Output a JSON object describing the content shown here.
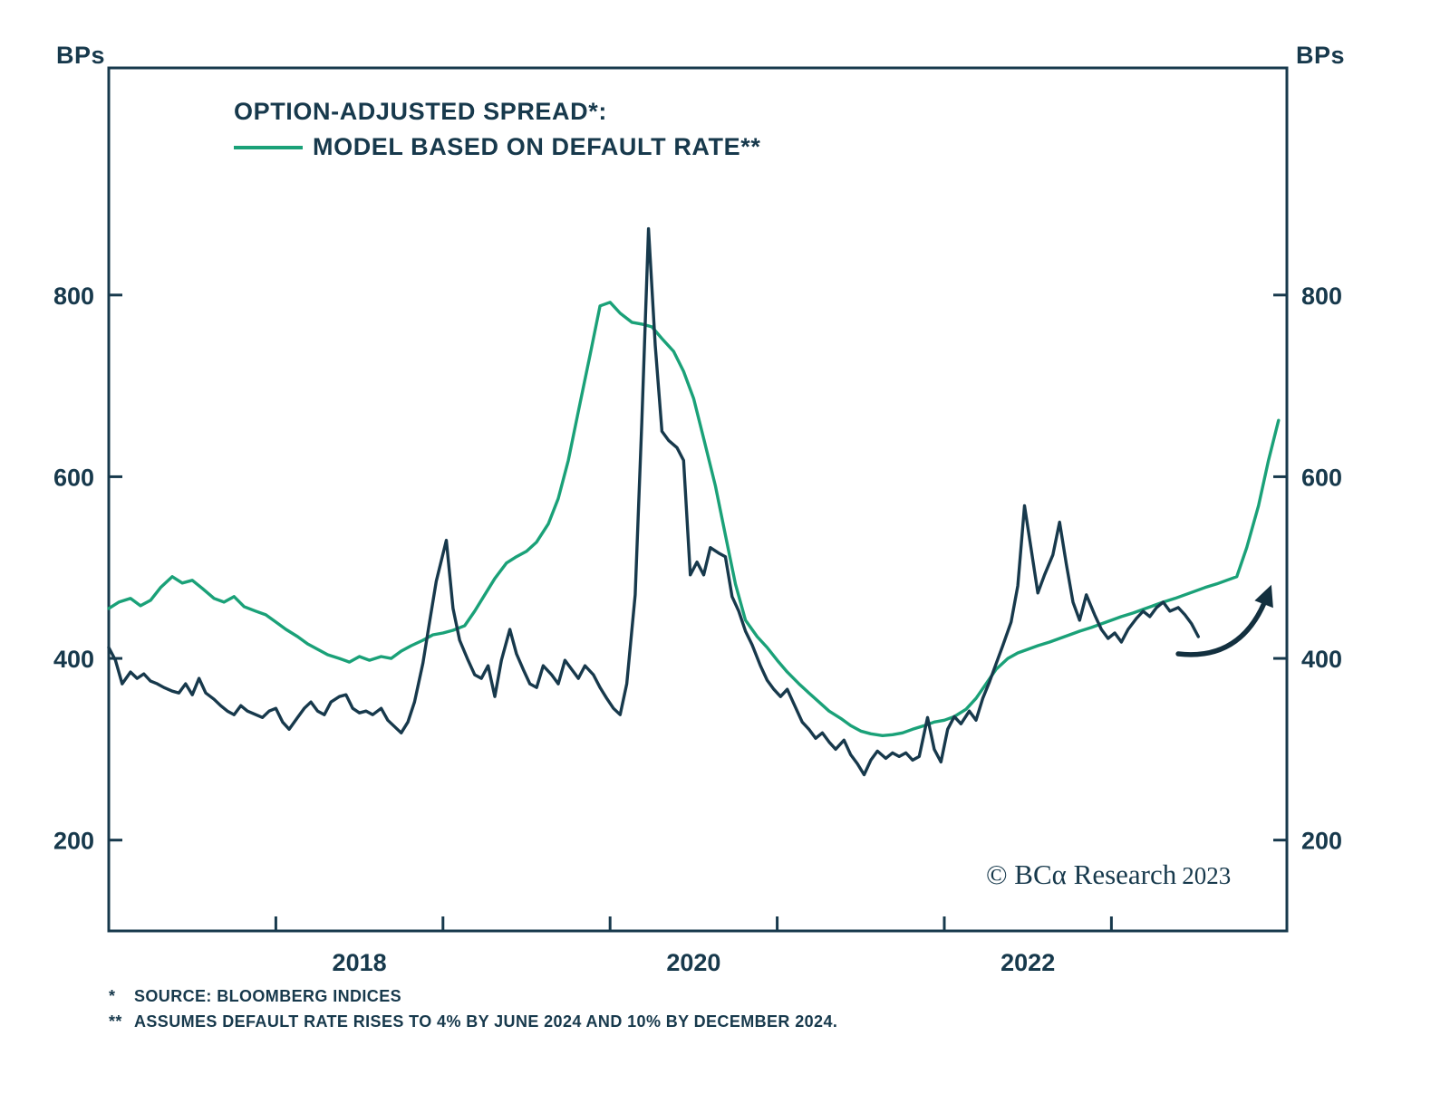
{
  "page": {
    "background": "#ffffff"
  },
  "colors": {
    "navy": "#17394c",
    "green": "#1aa178",
    "arrow": "#13303f",
    "background": "#ffffff"
  },
  "axis_units": {
    "left": "BPs",
    "right": "BPs"
  },
  "legend": {
    "line1": "OPTION-ADJUSTED SPREAD*:",
    "line2": "MODEL BASED ON DEFAULT RATE**"
  },
  "copyright": {
    "text": "© BCα Research",
    "year": "2023"
  },
  "footnotes": [
    {
      "marker": "*",
      "text": "SOURCE: BLOOMBERG INDICES"
    },
    {
      "marker": "**",
      "text": "ASSUMES DEFAULT RATE RISES TO 4% BY JUNE 2024 AND 10% BY DECEMBER 2024."
    }
  ],
  "chart_data": {
    "type": "line",
    "title": "OPTION-ADJUSTED SPREAD: ACTUAL VS MODEL BASED ON DEFAULT RATE",
    "xlabel": "",
    "ylabel": "BPs",
    "xlim": [
      2017.0,
      2024.05
    ],
    "ylim": [
      100,
      1050
    ],
    "yticks": [
      200,
      400,
      600,
      800
    ],
    "xticks": [
      2018,
      2019,
      2020,
      2021,
      2022,
      2023
    ],
    "xtick_labels": [
      {
        "x": 2018.5,
        "label": "2018"
      },
      {
        "x": 2020.5,
        "label": "2020"
      },
      {
        "x": 2022.5,
        "label": "2022"
      }
    ],
    "grid": false,
    "legend_position": "top-left",
    "series": [
      {
        "name": "OPTION-ADJUSTED SPREAD*",
        "color": "#17394c",
        "points": [
          [
            2017.0,
            412
          ],
          [
            2017.04,
            398
          ],
          [
            2017.08,
            372
          ],
          [
            2017.13,
            385
          ],
          [
            2017.17,
            378
          ],
          [
            2017.21,
            383
          ],
          [
            2017.25,
            375
          ],
          [
            2017.29,
            372
          ],
          [
            2017.33,
            368
          ],
          [
            2017.38,
            364
          ],
          [
            2017.42,
            362
          ],
          [
            2017.46,
            372
          ],
          [
            2017.5,
            360
          ],
          [
            2017.54,
            378
          ],
          [
            2017.58,
            362
          ],
          [
            2017.63,
            355
          ],
          [
            2017.67,
            348
          ],
          [
            2017.71,
            342
          ],
          [
            2017.75,
            338
          ],
          [
            2017.79,
            348
          ],
          [
            2017.83,
            342
          ],
          [
            2017.88,
            338
          ],
          [
            2017.92,
            335
          ],
          [
            2017.96,
            342
          ],
          [
            2018.0,
            345
          ],
          [
            2018.04,
            330
          ],
          [
            2018.08,
            322
          ],
          [
            2018.13,
            335
          ],
          [
            2018.17,
            345
          ],
          [
            2018.21,
            352
          ],
          [
            2018.25,
            342
          ],
          [
            2018.29,
            338
          ],
          [
            2018.33,
            352
          ],
          [
            2018.38,
            358
          ],
          [
            2018.42,
            360
          ],
          [
            2018.46,
            345
          ],
          [
            2018.5,
            340
          ],
          [
            2018.54,
            342
          ],
          [
            2018.58,
            338
          ],
          [
            2018.63,
            345
          ],
          [
            2018.67,
            332
          ],
          [
            2018.71,
            325
          ],
          [
            2018.75,
            318
          ],
          [
            2018.79,
            330
          ],
          [
            2018.83,
            352
          ],
          [
            2018.88,
            395
          ],
          [
            2018.92,
            440
          ],
          [
            2018.96,
            485
          ],
          [
            2019.02,
            530
          ],
          [
            2019.06,
            455
          ],
          [
            2019.1,
            420
          ],
          [
            2019.15,
            398
          ],
          [
            2019.19,
            382
          ],
          [
            2019.23,
            378
          ],
          [
            2019.27,
            392
          ],
          [
            2019.31,
            358
          ],
          [
            2019.35,
            398
          ],
          [
            2019.4,
            432
          ],
          [
            2019.44,
            405
          ],
          [
            2019.48,
            388
          ],
          [
            2019.52,
            372
          ],
          [
            2019.56,
            368
          ],
          [
            2019.6,
            392
          ],
          [
            2019.65,
            382
          ],
          [
            2019.69,
            372
          ],
          [
            2019.73,
            398
          ],
          [
            2019.77,
            388
          ],
          [
            2019.81,
            378
          ],
          [
            2019.85,
            392
          ],
          [
            2019.9,
            382
          ],
          [
            2019.94,
            368
          ],
          [
            2019.98,
            356
          ],
          [
            2020.02,
            345
          ],
          [
            2020.06,
            338
          ],
          [
            2020.1,
            372
          ],
          [
            2020.15,
            470
          ],
          [
            2020.19,
            660
          ],
          [
            2020.23,
            873
          ],
          [
            2020.27,
            745
          ],
          [
            2020.31,
            650
          ],
          [
            2020.35,
            640
          ],
          [
            2020.4,
            632
          ],
          [
            2020.44,
            618
          ],
          [
            2020.48,
            492
          ],
          [
            2020.52,
            506
          ],
          [
            2020.56,
            492
          ],
          [
            2020.6,
            522
          ],
          [
            2020.65,
            516
          ],
          [
            2020.69,
            512
          ],
          [
            2020.73,
            468
          ],
          [
            2020.77,
            452
          ],
          [
            2020.81,
            430
          ],
          [
            2020.85,
            415
          ],
          [
            2020.9,
            392
          ],
          [
            2020.94,
            376
          ],
          [
            2020.98,
            366
          ],
          [
            2021.02,
            358
          ],
          [
            2021.06,
            366
          ],
          [
            2021.1,
            350
          ],
          [
            2021.15,
            330
          ],
          [
            2021.19,
            322
          ],
          [
            2021.23,
            312
          ],
          [
            2021.27,
            318
          ],
          [
            2021.31,
            308
          ],
          [
            2021.35,
            300
          ],
          [
            2021.4,
            310
          ],
          [
            2021.44,
            294
          ],
          [
            2021.48,
            284
          ],
          [
            2021.52,
            272
          ],
          [
            2021.56,
            288
          ],
          [
            2021.6,
            298
          ],
          [
            2021.65,
            290
          ],
          [
            2021.69,
            296
          ],
          [
            2021.73,
            292
          ],
          [
            2021.77,
            296
          ],
          [
            2021.81,
            288
          ],
          [
            2021.85,
            292
          ],
          [
            2021.9,
            335
          ],
          [
            2021.94,
            300
          ],
          [
            2021.98,
            286
          ],
          [
            2022.02,
            322
          ],
          [
            2022.06,
            336
          ],
          [
            2022.1,
            328
          ],
          [
            2022.15,
            342
          ],
          [
            2022.19,
            332
          ],
          [
            2022.23,
            356
          ],
          [
            2022.27,
            374
          ],
          [
            2022.31,
            394
          ],
          [
            2022.35,
            414
          ],
          [
            2022.4,
            440
          ],
          [
            2022.44,
            480
          ],
          [
            2022.48,
            568
          ],
          [
            2022.52,
            520
          ],
          [
            2022.56,
            472
          ],
          [
            2022.6,
            492
          ],
          [
            2022.65,
            514
          ],
          [
            2022.69,
            550
          ],
          [
            2022.73,
            504
          ],
          [
            2022.77,
            462
          ],
          [
            2022.81,
            442
          ],
          [
            2022.85,
            470
          ],
          [
            2022.9,
            448
          ],
          [
            2022.94,
            432
          ],
          [
            2022.98,
            422
          ],
          [
            2023.02,
            428
          ],
          [
            2023.06,
            418
          ],
          [
            2023.1,
            432
          ],
          [
            2023.15,
            444
          ],
          [
            2023.19,
            452
          ],
          [
            2023.23,
            446
          ],
          [
            2023.27,
            456
          ],
          [
            2023.31,
            462
          ],
          [
            2023.35,
            452
          ],
          [
            2023.4,
            456
          ],
          [
            2023.44,
            448
          ],
          [
            2023.48,
            438
          ],
          [
            2023.52,
            424
          ]
        ]
      },
      {
        "name": "MODEL BASED ON DEFAULT RATE**",
        "color": "#1aa178",
        "points": [
          [
            2017.0,
            455
          ],
          [
            2017.06,
            462
          ],
          [
            2017.13,
            466
          ],
          [
            2017.19,
            458
          ],
          [
            2017.25,
            464
          ],
          [
            2017.31,
            478
          ],
          [
            2017.38,
            490
          ],
          [
            2017.44,
            483
          ],
          [
            2017.5,
            486
          ],
          [
            2017.56,
            477
          ],
          [
            2017.63,
            466
          ],
          [
            2017.69,
            462
          ],
          [
            2017.75,
            468
          ],
          [
            2017.81,
            457
          ],
          [
            2017.88,
            452
          ],
          [
            2017.94,
            448
          ],
          [
            2018.0,
            440
          ],
          [
            2018.06,
            432
          ],
          [
            2018.13,
            424
          ],
          [
            2018.19,
            416
          ],
          [
            2018.25,
            410
          ],
          [
            2018.31,
            404
          ],
          [
            2018.38,
            400
          ],
          [
            2018.44,
            396
          ],
          [
            2018.5,
            402
          ],
          [
            2018.56,
            398
          ],
          [
            2018.63,
            402
          ],
          [
            2018.69,
            400
          ],
          [
            2018.75,
            408
          ],
          [
            2018.81,
            414
          ],
          [
            2018.88,
            420
          ],
          [
            2018.94,
            426
          ],
          [
            2019.0,
            428
          ],
          [
            2019.06,
            431
          ],
          [
            2019.13,
            436
          ],
          [
            2019.19,
            452
          ],
          [
            2019.25,
            470
          ],
          [
            2019.31,
            488
          ],
          [
            2019.38,
            505
          ],
          [
            2019.44,
            512
          ],
          [
            2019.5,
            518
          ],
          [
            2019.56,
            528
          ],
          [
            2019.63,
            548
          ],
          [
            2019.69,
            576
          ],
          [
            2019.75,
            618
          ],
          [
            2019.81,
            672
          ],
          [
            2019.88,
            734
          ],
          [
            2019.94,
            788
          ],
          [
            2020.0,
            792
          ],
          [
            2020.06,
            780
          ],
          [
            2020.13,
            770
          ],
          [
            2020.19,
            768
          ],
          [
            2020.25,
            765
          ],
          [
            2020.31,
            752
          ],
          [
            2020.38,
            738
          ],
          [
            2020.44,
            716
          ],
          [
            2020.5,
            686
          ],
          [
            2020.56,
            642
          ],
          [
            2020.63,
            590
          ],
          [
            2020.69,
            536
          ],
          [
            2020.75,
            482
          ],
          [
            2020.81,
            442
          ],
          [
            2020.88,
            424
          ],
          [
            2020.94,
            412
          ],
          [
            2021.0,
            398
          ],
          [
            2021.06,
            385
          ],
          [
            2021.13,
            372
          ],
          [
            2021.19,
            362
          ],
          [
            2021.25,
            352
          ],
          [
            2021.31,
            342
          ],
          [
            2021.38,
            334
          ],
          [
            2021.44,
            326
          ],
          [
            2021.5,
            320
          ],
          [
            2021.56,
            317
          ],
          [
            2021.63,
            315
          ],
          [
            2021.69,
            316
          ],
          [
            2021.75,
            318
          ],
          [
            2021.81,
            322
          ],
          [
            2021.88,
            326
          ],
          [
            2021.94,
            330
          ],
          [
            2022.0,
            332
          ],
          [
            2022.06,
            336
          ],
          [
            2022.13,
            344
          ],
          [
            2022.19,
            356
          ],
          [
            2022.25,
            372
          ],
          [
            2022.31,
            388
          ],
          [
            2022.38,
            400
          ],
          [
            2022.44,
            406
          ],
          [
            2022.5,
            410
          ],
          [
            2022.56,
            414
          ],
          [
            2022.63,
            418
          ],
          [
            2022.69,
            422
          ],
          [
            2022.75,
            426
          ],
          [
            2022.81,
            430
          ],
          [
            2022.88,
            434
          ],
          [
            2022.94,
            438
          ],
          [
            2023.0,
            442
          ],
          [
            2023.06,
            446
          ],
          [
            2023.13,
            450
          ],
          [
            2023.19,
            454
          ],
          [
            2023.25,
            458
          ],
          [
            2023.31,
            462
          ],
          [
            2023.38,
            466
          ],
          [
            2023.44,
            470
          ],
          [
            2023.5,
            474
          ],
          [
            2023.56,
            478
          ],
          [
            2023.63,
            482
          ],
          [
            2023.69,
            486
          ],
          [
            2023.75,
            490
          ],
          [
            2023.81,
            522
          ],
          [
            2023.88,
            568
          ],
          [
            2023.94,
            618
          ],
          [
            2024.0,
            662
          ]
        ]
      }
    ],
    "annotation": {
      "type": "arrow",
      "description": "hand-drawn arrow pointing up toward rising model spread",
      "from_x": 2023.4,
      "from_y": 405,
      "to_x": 2023.93,
      "to_y": 468,
      "color": "#13303f"
    }
  }
}
